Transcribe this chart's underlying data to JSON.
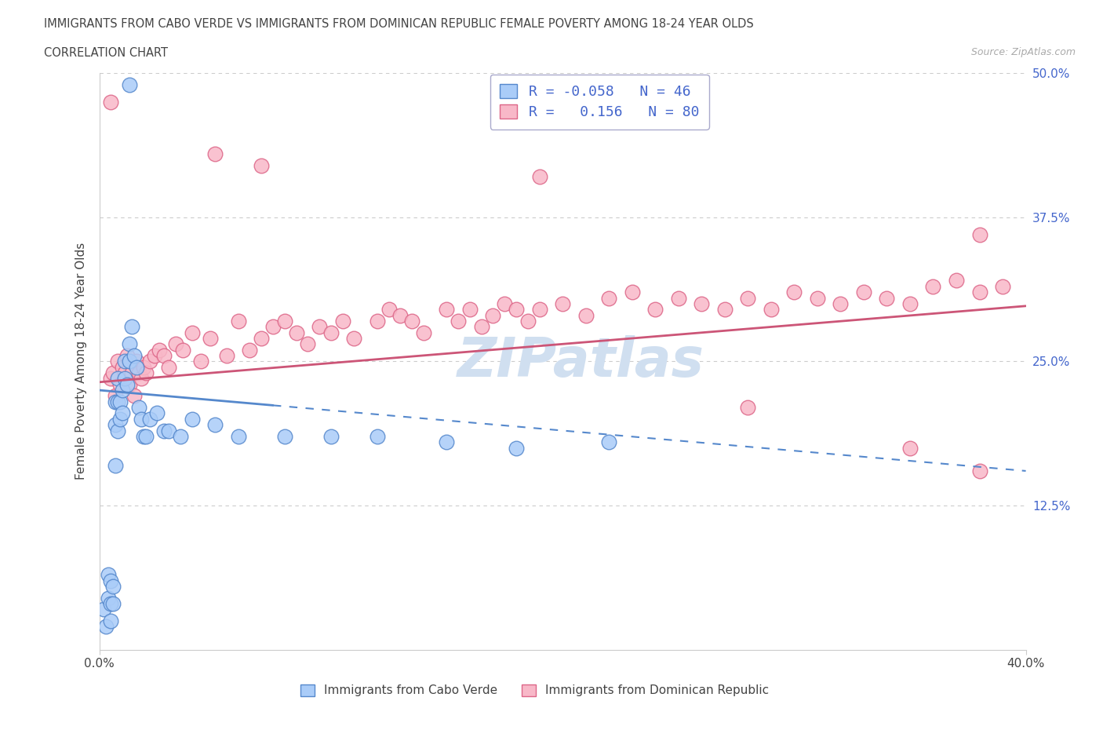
{
  "title_line1": "IMMIGRANTS FROM CABO VERDE VS IMMIGRANTS FROM DOMINICAN REPUBLIC FEMALE POVERTY AMONG 18-24 YEAR OLDS",
  "title_line2": "CORRELATION CHART",
  "source_text": "Source: ZipAtlas.com",
  "ylabel": "Female Poverty Among 18-24 Year Olds",
  "xmin": 0.0,
  "xmax": 0.4,
  "ymin": 0.0,
  "ymax": 0.5,
  "yticks": [
    0.0,
    0.125,
    0.25,
    0.375,
    0.5
  ],
  "ytick_labels": [
    "",
    "12.5%",
    "25.0%",
    "37.5%",
    "50.0%"
  ],
  "xticks": [
    0.0,
    0.4
  ],
  "xtick_labels": [
    "0.0%",
    "40.0%"
  ],
  "cabo_verde_color": "#aaccf8",
  "cabo_verde_edge": "#5588cc",
  "dominican_color": "#f8b8c8",
  "dominican_edge": "#dd6688",
  "cabo_verde_R": -0.058,
  "cabo_verde_N": 46,
  "dominican_R": 0.156,
  "dominican_N": 80,
  "legend_R_color": "#4466cc",
  "watermark_color": "#d0dff0",
  "grid_color": "#cccccc",
  "trendline_cabo_color": "#5588cc",
  "trendline_dominican_color": "#cc5577",
  "background_color": "#ffffff",
  "cabo_verde_x": [
    0.002,
    0.003,
    0.004,
    0.004,
    0.005,
    0.005,
    0.005,
    0.006,
    0.006,
    0.007,
    0.007,
    0.007,
    0.008,
    0.008,
    0.008,
    0.009,
    0.009,
    0.01,
    0.01,
    0.011,
    0.011,
    0.012,
    0.013,
    0.013,
    0.014,
    0.015,
    0.016,
    0.017,
    0.018,
    0.019,
    0.02,
    0.022,
    0.025,
    0.028,
    0.03,
    0.035,
    0.04,
    0.05,
    0.06,
    0.08,
    0.1,
    0.12,
    0.15,
    0.18,
    0.22,
    0.013
  ],
  "cabo_verde_y": [
    0.035,
    0.02,
    0.065,
    0.045,
    0.06,
    0.04,
    0.025,
    0.055,
    0.04,
    0.215,
    0.195,
    0.16,
    0.235,
    0.215,
    0.19,
    0.215,
    0.2,
    0.225,
    0.205,
    0.25,
    0.235,
    0.23,
    0.265,
    0.25,
    0.28,
    0.255,
    0.245,
    0.21,
    0.2,
    0.185,
    0.185,
    0.2,
    0.205,
    0.19,
    0.19,
    0.185,
    0.2,
    0.195,
    0.185,
    0.185,
    0.185,
    0.185,
    0.18,
    0.175,
    0.18,
    0.49
  ],
  "dominican_x": [
    0.005,
    0.006,
    0.007,
    0.008,
    0.009,
    0.01,
    0.011,
    0.012,
    0.013,
    0.014,
    0.015,
    0.016,
    0.017,
    0.018,
    0.019,
    0.02,
    0.022,
    0.024,
    0.026,
    0.028,
    0.03,
    0.033,
    0.036,
    0.04,
    0.044,
    0.048,
    0.055,
    0.06,
    0.065,
    0.07,
    0.075,
    0.08,
    0.085,
    0.09,
    0.095,
    0.1,
    0.105,
    0.11,
    0.12,
    0.125,
    0.13,
    0.135,
    0.14,
    0.15,
    0.155,
    0.16,
    0.165,
    0.17,
    0.175,
    0.18,
    0.185,
    0.19,
    0.2,
    0.21,
    0.22,
    0.23,
    0.24,
    0.25,
    0.26,
    0.27,
    0.28,
    0.29,
    0.3,
    0.31,
    0.32,
    0.33,
    0.34,
    0.35,
    0.36,
    0.37,
    0.38,
    0.39,
    0.05,
    0.07,
    0.19,
    0.38,
    0.35,
    0.005,
    0.38,
    0.28
  ],
  "dominican_y": [
    0.235,
    0.24,
    0.22,
    0.25,
    0.23,
    0.245,
    0.24,
    0.255,
    0.23,
    0.24,
    0.22,
    0.25,
    0.24,
    0.235,
    0.245,
    0.24,
    0.25,
    0.255,
    0.26,
    0.255,
    0.245,
    0.265,
    0.26,
    0.275,
    0.25,
    0.27,
    0.255,
    0.285,
    0.26,
    0.27,
    0.28,
    0.285,
    0.275,
    0.265,
    0.28,
    0.275,
    0.285,
    0.27,
    0.285,
    0.295,
    0.29,
    0.285,
    0.275,
    0.295,
    0.285,
    0.295,
    0.28,
    0.29,
    0.3,
    0.295,
    0.285,
    0.295,
    0.3,
    0.29,
    0.305,
    0.31,
    0.295,
    0.305,
    0.3,
    0.295,
    0.305,
    0.295,
    0.31,
    0.305,
    0.3,
    0.31,
    0.305,
    0.3,
    0.315,
    0.32,
    0.31,
    0.315,
    0.43,
    0.42,
    0.41,
    0.155,
    0.175,
    0.475,
    0.36,
    0.21
  ]
}
